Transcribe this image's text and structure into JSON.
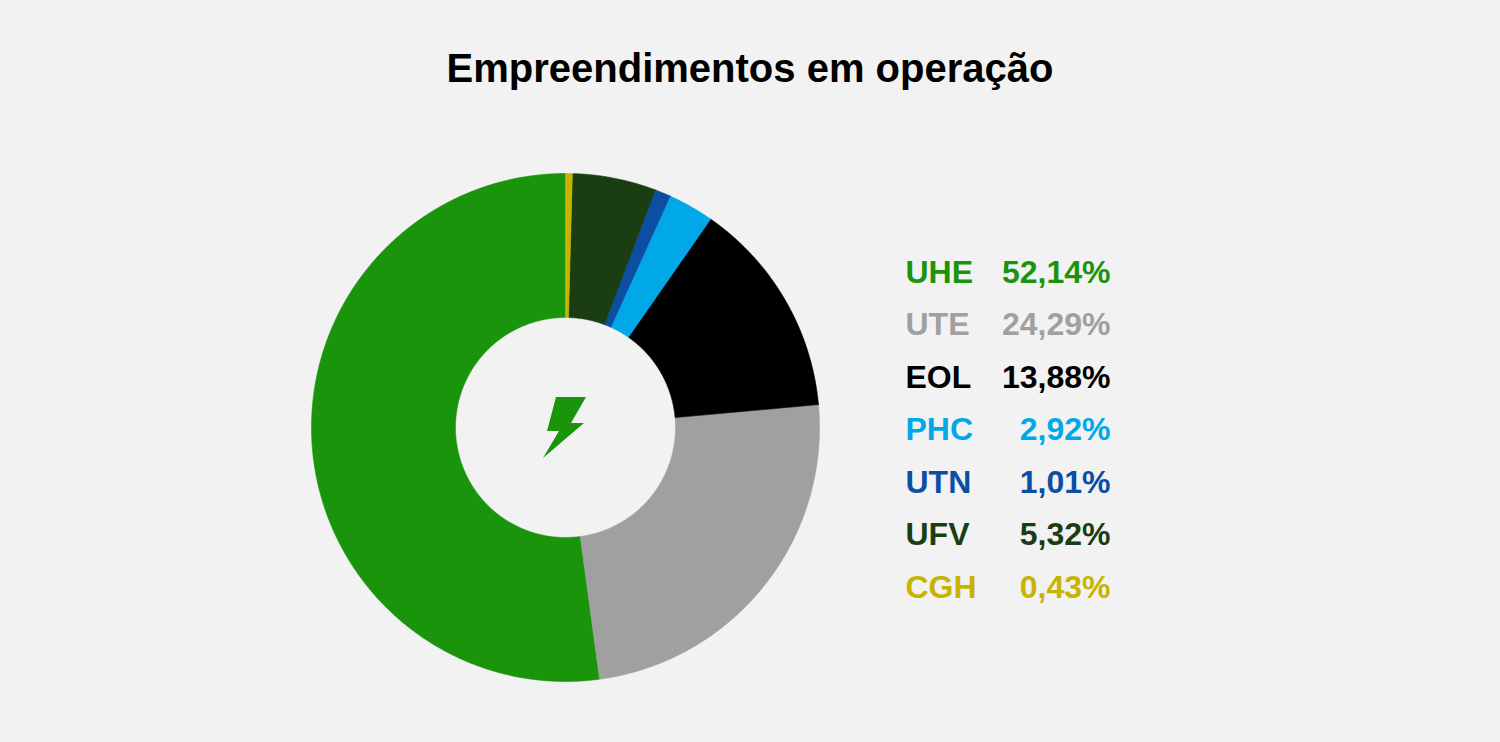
{
  "chart_data": {
    "type": "pie",
    "title": "Empreendimentos em operação",
    "categories": [
      "UHE",
      "UTE",
      "EOL",
      "PHC",
      "UTN",
      "UFV",
      "CGH"
    ],
    "values": [
      52.14,
      24.29,
      13.88,
      2.92,
      1.01,
      5.32,
      0.43
    ],
    "value_labels": [
      "52,14%",
      "24,29%",
      "13,88%",
      "2,92%",
      "1,01%",
      "5,32%",
      "0,43%"
    ],
    "colors": [
      "#1a940a",
      "#a0a0a0",
      "#000000",
      "#00a8e8",
      "#0b4ea2",
      "#1a3d12",
      "#c8b400"
    ],
    "legend": "right"
  }
}
